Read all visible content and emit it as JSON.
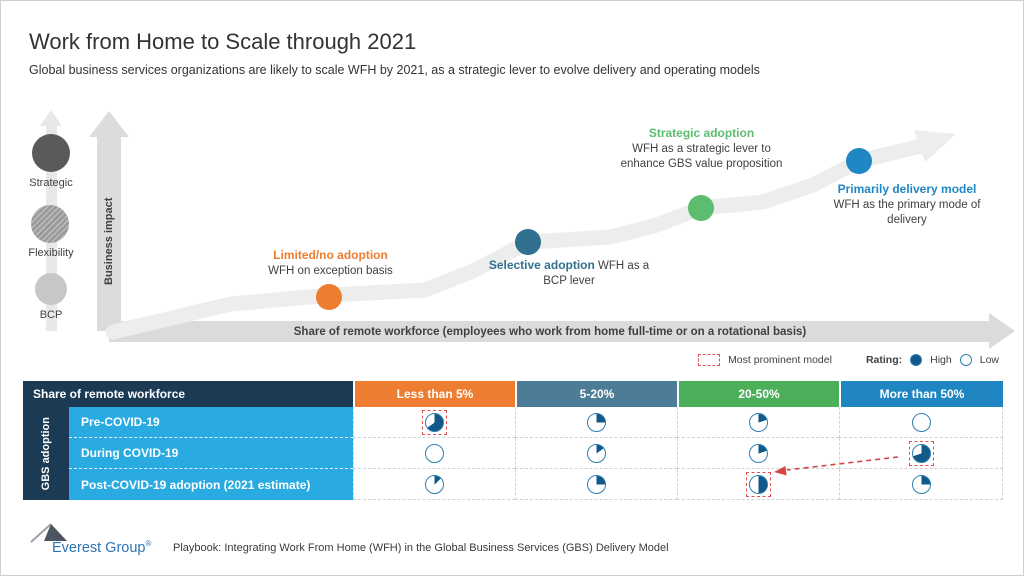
{
  "colors": {
    "accent_orange": "#ED7D31",
    "accent_teal": "#31708E",
    "accent_green": "#5CBD6E",
    "accent_blue": "#1F87C4",
    "table_navy": "#1B3A54",
    "table_light_blue": "#29ABE2",
    "col_orange": "#ED7D31",
    "col_slate": "#4D7C97",
    "col_green": "#4CAF5A",
    "col_blue": "#1F86C2",
    "pie_fill": "#12598A",
    "pie_ring": "#2E7FAE",
    "prominent_red": "#E05153"
  },
  "header": {
    "title": "Work from Home to Scale through 2021",
    "subtitle": "Global business services organizations are likely to scale WFH by 2021, as a strategic lever to evolve delivery and operating models"
  },
  "impact_axis": {
    "levels": [
      {
        "label": "Strategic"
      },
      {
        "label": "Flexibility"
      },
      {
        "label": "BCP"
      }
    ],
    "y_label": "Business impact",
    "x_label": "Share of remote workforce (employees who work from home full-time or on a rotational basis)"
  },
  "milestones": [
    {
      "title": "Limited/no adoption",
      "desc": "WFH on exception basis"
    },
    {
      "title": "Selective adoption",
      "desc": "WFH as a BCP lever"
    },
    {
      "title": "Strategic adoption",
      "desc": "WFH as a strategic lever to enhance GBS value proposition"
    },
    {
      "title": "Primarily delivery model",
      "desc": "WFH as the primary mode of delivery"
    }
  ],
  "legend": {
    "prominent": "Most prominent model",
    "rating": "Rating:",
    "high": "High",
    "low": "Low"
  },
  "table": {
    "corner": "Share of remote workforce",
    "columns": [
      {
        "label": "Less than 5%"
      },
      {
        "label": "5-20%"
      },
      {
        "label": "20-50%"
      },
      {
        "label": "More than 50%"
      }
    ],
    "row_group": "GBS adoption",
    "rows": [
      {
        "label": "Pre-COVID-19",
        "cells": [
          {
            "fraction": 0.65,
            "prominent": true
          },
          {
            "fraction": 0.25
          },
          {
            "fraction": 0.2
          },
          {
            "fraction": 0
          }
        ]
      },
      {
        "label": "During COVID-19",
        "cells": [
          {
            "fraction": 0
          },
          {
            "fraction": 0.15
          },
          {
            "fraction": 0.2
          },
          {
            "fraction": 0.7,
            "prominent": true
          }
        ]
      },
      {
        "label": "Post-COVID-19 adoption (2021 estimate)",
        "cells": [
          {
            "fraction": 0.125
          },
          {
            "fraction": 0.25
          },
          {
            "fraction": 0.5,
            "prominent": true
          },
          {
            "fraction": 0.25
          }
        ]
      }
    ]
  },
  "footer": {
    "brand": "Everest Group",
    "reg": "®",
    "caption": "Playbook: Integrating Work From Home (WFH) in the Global Business Services (GBS) Delivery Model"
  },
  "chart_data": {
    "type": "table",
    "title": "Work from Home to Scale through 2021",
    "subtitle": "Global business services organizations are likely to scale WFH by 2021, as a strategic lever to evolve delivery and operating models",
    "maturity_curve": {
      "x_axis": "Share of remote workforce (employees who work from home full-time or on a rotational basis)",
      "y_axis": "Business impact",
      "impact_levels": [
        "BCP",
        "Flexibility",
        "Strategic"
      ],
      "stages": [
        {
          "name": "Limited/no adoption",
          "description": "WFH on exception basis",
          "color": "#ED7D31"
        },
        {
          "name": "Selective adoption",
          "description": "WFH as a BCP lever",
          "color": "#31708E"
        },
        {
          "name": "Strategic adoption",
          "description": "WFH as a strategic lever to enhance GBS value proposition",
          "color": "#5CBD6E"
        },
        {
          "name": "Primarily delivery model",
          "description": "WFH as the primary mode of delivery",
          "color": "#1F87C4"
        }
      ]
    },
    "categories": [
      "Less than 5%",
      "5-20%",
      "20-50%",
      "More than 50%"
    ],
    "series": [
      {
        "name": "Pre-COVID-19",
        "values": [
          0.65,
          0.25,
          0.2,
          0
        ],
        "most_prominent": "Less than 5%"
      },
      {
        "name": "During COVID-19",
        "values": [
          0,
          0.15,
          0.2,
          0.7
        ],
        "most_prominent": "More than 50%"
      },
      {
        "name": "Post-COVID-19 adoption (2021 estimate)",
        "values": [
          0.125,
          0.25,
          0.5,
          0.25
        ],
        "most_prominent": "20-50%"
      }
    ],
    "value_encoding": "harvey-ball fill fraction (filled = High rating, empty = Low rating)",
    "legend_position": "top-right above table",
    "annotation": "red dashed arrow from During COVID-19 / More than 50% to Post-COVID-19 / 20-50%"
  }
}
